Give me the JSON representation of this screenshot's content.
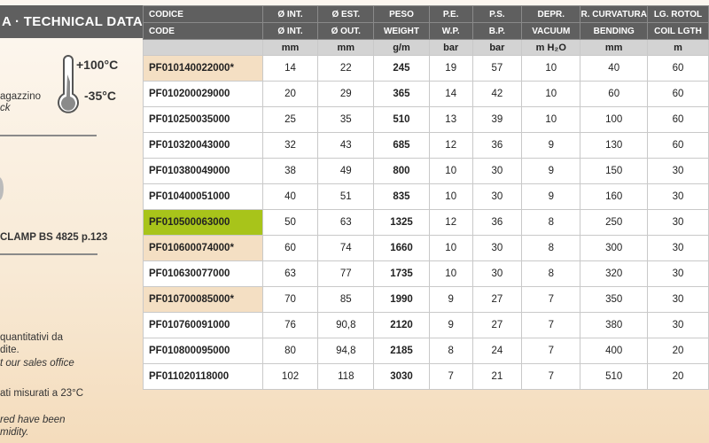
{
  "left": {
    "title": "A · TECHNICAL DATA",
    "temp_max": "+100°C",
    "temp_min": "-35°C",
    "storage_it": "agazzino",
    "storage_en": "ck",
    "clamp_ref": "CLAMP BS 4825 p.123",
    "note1_it": "quantitativi da",
    "note1_it2": "dite.",
    "note1_en": "t our sales office",
    "note2_it": "ati misurati a 23°C",
    "note2_en": "red have been",
    "note2_en2": "midity."
  },
  "table": {
    "header_it": [
      "CODICE",
      "Ø INT.",
      "Ø EST.",
      "PESO",
      "P.E.",
      "P.S.",
      "DEPR.",
      "R. CURVATURA",
      "LG. ROTOL"
    ],
    "header_en": [
      "CODE",
      "Ø INT.",
      "Ø OUT.",
      "WEIGHT",
      "W.P.",
      "B.P.",
      "VACUUM",
      "BENDING",
      "COIL LGTH"
    ],
    "units": [
      "",
      "mm",
      "mm",
      "g/m",
      "bar",
      "bar",
      "m H₂O",
      "mm",
      "m"
    ],
    "rows": [
      {
        "code": "PF010140022000*",
        "vals": [
          "14",
          "22",
          "245",
          "19",
          "57",
          "10",
          "40",
          "60"
        ],
        "hl": "peach"
      },
      {
        "code": "PF010200029000",
        "vals": [
          "20",
          "29",
          "365",
          "14",
          "42",
          "10",
          "60",
          "60"
        ]
      },
      {
        "code": "PF010250035000",
        "vals": [
          "25",
          "35",
          "510",
          "13",
          "39",
          "10",
          "100",
          "60"
        ]
      },
      {
        "code": "PF010320043000",
        "vals": [
          "32",
          "43",
          "685",
          "12",
          "36",
          "9",
          "130",
          "60"
        ]
      },
      {
        "code": "PF010380049000",
        "vals": [
          "38",
          "49",
          "800",
          "10",
          "30",
          "9",
          "150",
          "30"
        ]
      },
      {
        "code": "PF010400051000",
        "vals": [
          "40",
          "51",
          "835",
          "10",
          "30",
          "9",
          "160",
          "30"
        ]
      },
      {
        "code": "PF010500063000",
        "vals": [
          "50",
          "63",
          "1325",
          "12",
          "36",
          "8",
          "250",
          "30"
        ],
        "hl": "green"
      },
      {
        "code": "PF010600074000*",
        "vals": [
          "60",
          "74",
          "1660",
          "10",
          "30",
          "8",
          "300",
          "30"
        ],
        "hl": "peach"
      },
      {
        "code": "PF010630077000",
        "vals": [
          "63",
          "77",
          "1735",
          "10",
          "30",
          "8",
          "320",
          "30"
        ]
      },
      {
        "code": "PF010700085000*",
        "vals": [
          "70",
          "85",
          "1990",
          "9",
          "27",
          "7",
          "350",
          "30"
        ],
        "hl": "peach"
      },
      {
        "code": "PF010760091000",
        "vals": [
          "76",
          "90,8",
          "2120",
          "9",
          "27",
          "7",
          "380",
          "30"
        ]
      },
      {
        "code": "PF010800095000",
        "vals": [
          "80",
          "94,8",
          "2185",
          "8",
          "24",
          "7",
          "400",
          "20"
        ]
      },
      {
        "code": "PF011020118000",
        "vals": [
          "102",
          "118",
          "3030",
          "7",
          "21",
          "7",
          "510",
          "20"
        ]
      }
    ]
  },
  "colors": {
    "header": "#5f5f5f",
    "units": "#d3d3d3",
    "peach": "#f4dfc3",
    "green": "#a8c41a"
  }
}
